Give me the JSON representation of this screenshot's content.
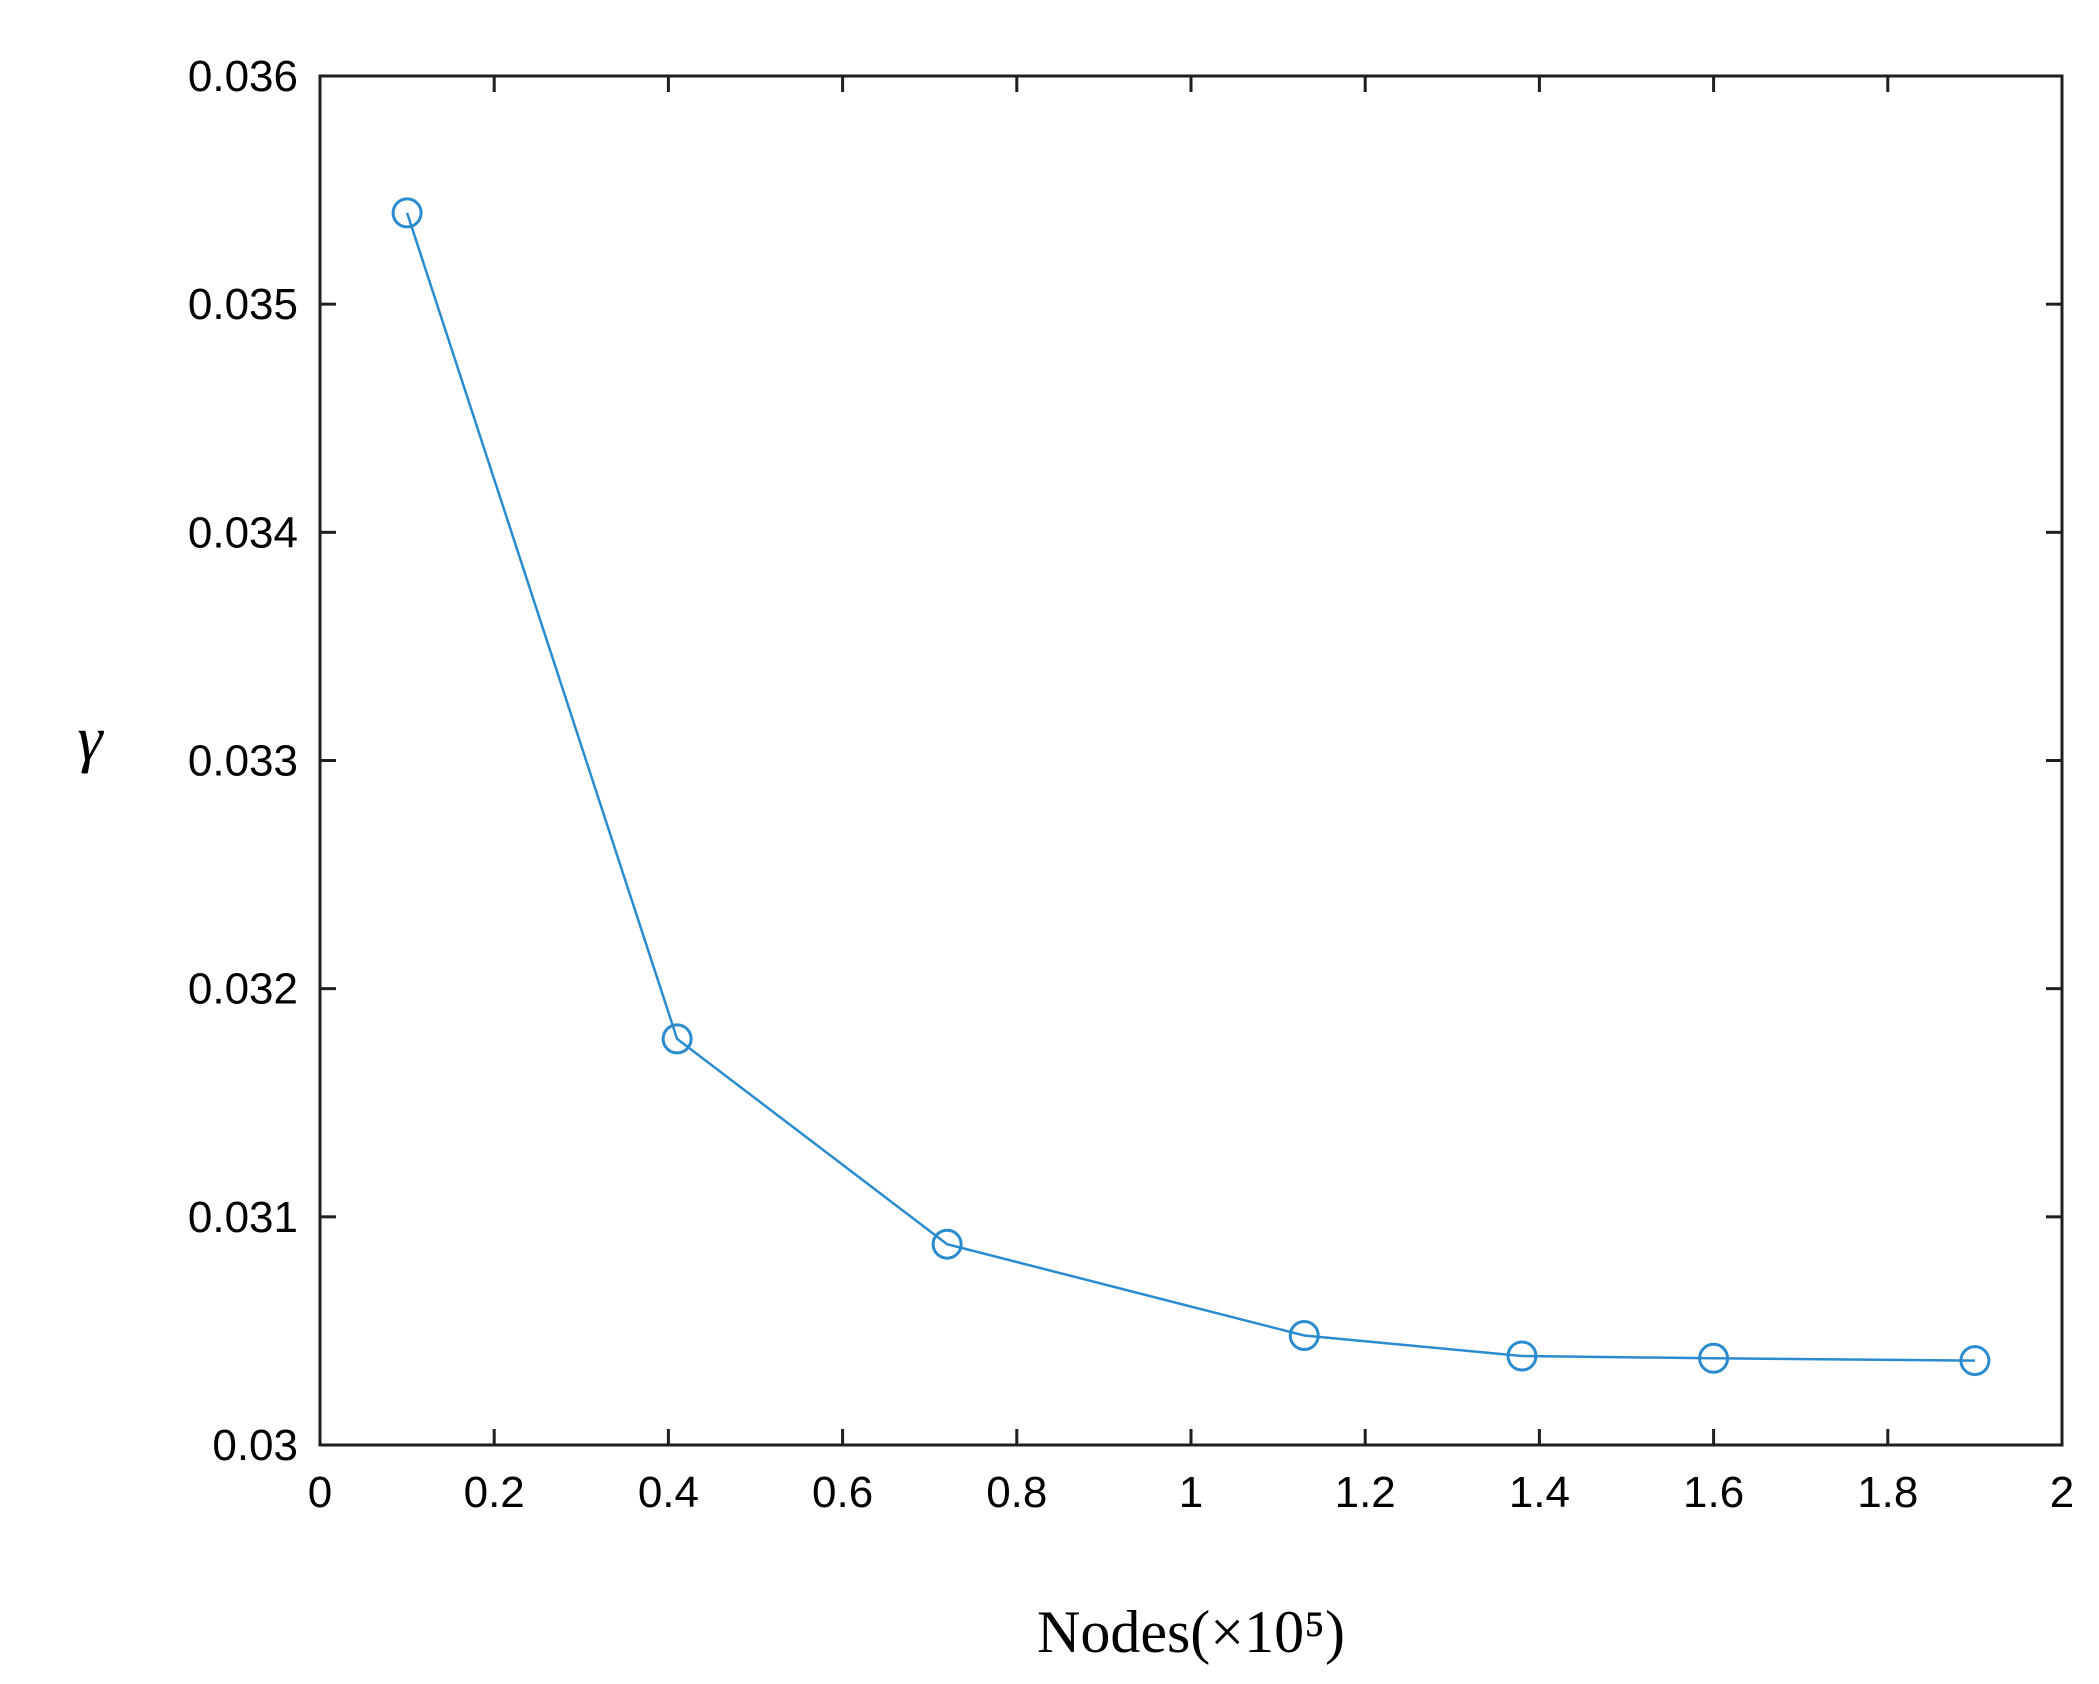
{
  "chart_data": {
    "type": "line",
    "title": "",
    "xlabel": "Nodes(×10⁵)",
    "ylabel": "γ",
    "xlim": [
      0,
      2
    ],
    "ylim": [
      0.03,
      0.036
    ],
    "x_ticks": [
      "0",
      "0.2",
      "0.4",
      "0.6",
      "0.8",
      "1",
      "1.2",
      "1.4",
      "1.6",
      "1.8",
      "2"
    ],
    "y_ticks": [
      "0.03",
      "0.031",
      "0.032",
      "0.033",
      "0.034",
      "0.035",
      "0.036"
    ],
    "grid": false,
    "marker": "circle",
    "series": [
      {
        "color": "#2a8ccf",
        "x": [
          0.1,
          0.41,
          0.72,
          1.13,
          1.38,
          1.6,
          1.9
        ],
        "y": [
          0.0354,
          0.03178,
          0.03088,
          0.03048,
          0.03039,
          0.03038,
          0.03037
        ]
      }
    ]
  }
}
